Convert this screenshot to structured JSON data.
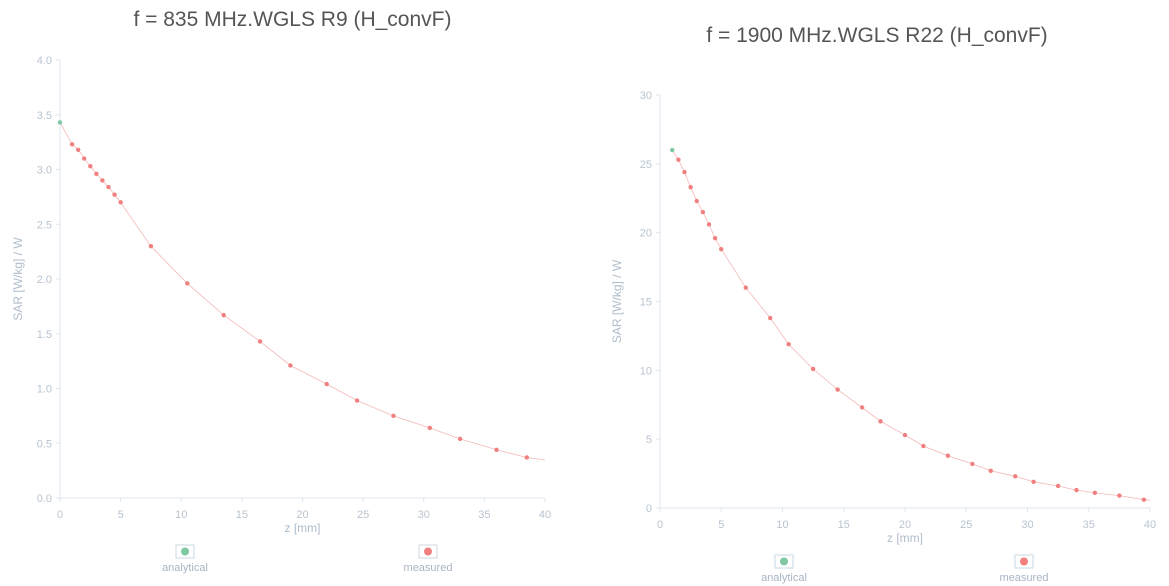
{
  "chart_data": [
    {
      "type": "scatter",
      "title": "f = 835 MHz.WGLS R9 (H_convF)",
      "xlabel": "z [mm]",
      "ylabel": "SAR [W/kg] / W",
      "xlim": [
        0,
        40
      ],
      "ylim": [
        0,
        4.0
      ],
      "x_ticks": [
        "0",
        "5",
        "10",
        "15",
        "20",
        "25",
        "30",
        "35",
        "40"
      ],
      "y_ticks": [
        "0.0",
        "0.5",
        "1.0",
        "1.5",
        "2.0",
        "2.5",
        "3.0",
        "3.5",
        "4.0"
      ],
      "grid": false,
      "legend": "bottom",
      "colors": {
        "analytical": "#7ec8a4",
        "measured": "#f08080"
      },
      "series": [
        {
          "name": "analytical",
          "x": [
            0.0
          ],
          "y": [
            3.43
          ]
        },
        {
          "name": "measured",
          "x": [
            1.0,
            1.5,
            2.0,
            2.5,
            3.0,
            3.5,
            4.0,
            4.5,
            5.0,
            7.5,
            10.5,
            13.5,
            16.5,
            19.0,
            22.0,
            24.5,
            27.5,
            30.5,
            33.0,
            36.0,
            38.5
          ],
          "y": [
            3.23,
            3.18,
            3.1,
            3.03,
            2.96,
            2.9,
            2.84,
            2.77,
            2.7,
            2.3,
            1.96,
            1.67,
            1.43,
            1.21,
            1.04,
            0.89,
            0.75,
            0.64,
            0.54,
            0.44,
            0.37
          ]
        }
      ]
    },
    {
      "type": "scatter",
      "title": "f = 1900 MHz.WGLS R22 (H_convF)",
      "xlabel": "z [mm]",
      "ylabel": "SAR [W/kg] / W",
      "xlim": [
        0,
        40
      ],
      "ylim": [
        0,
        30
      ],
      "x_ticks": [
        "0",
        "5",
        "10",
        "15",
        "20",
        "25",
        "30",
        "35",
        "40"
      ],
      "y_ticks": [
        "0",
        "5",
        "10",
        "15",
        "20",
        "25",
        "30"
      ],
      "grid": false,
      "legend": "bottom",
      "colors": {
        "analytical": "#7ec8a4",
        "measured": "#f08080"
      },
      "series": [
        {
          "name": "analytical",
          "x": [
            1.0
          ],
          "y": [
            26.0
          ]
        },
        {
          "name": "measured",
          "x": [
            1.5,
            2.0,
            2.5,
            3.0,
            3.5,
            4.0,
            4.5,
            5.0,
            7.0,
            9.0,
            10.5,
            12.5,
            14.5,
            16.5,
            18.0,
            20.0,
            21.5,
            23.5,
            25.5,
            27.0,
            29.0,
            30.5,
            32.5,
            34.0,
            35.5,
            37.5,
            39.5
          ],
          "y": [
            25.3,
            24.4,
            23.3,
            22.3,
            21.5,
            20.6,
            19.6,
            18.8,
            16.0,
            13.8,
            11.9,
            10.1,
            8.6,
            7.3,
            6.3,
            5.3,
            4.5,
            3.8,
            3.2,
            2.7,
            2.3,
            1.9,
            1.6,
            1.3,
            1.1,
            0.9,
            0.6
          ]
        }
      ]
    }
  ],
  "legend_labels": {
    "left": {
      "analytical": "analytical",
      "measured": "measured"
    },
    "right": {
      "analytical": "analytical",
      "measured": "measured"
    }
  }
}
